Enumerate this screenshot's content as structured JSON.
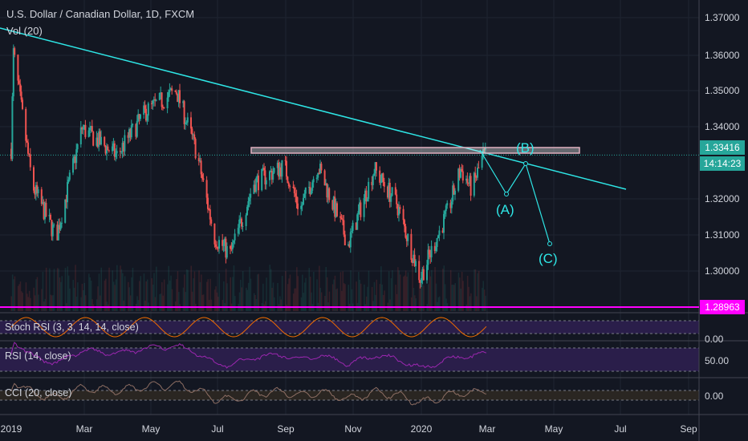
{
  "header": {
    "title": "U.S. Dollar / Canadian Dollar, 1D, FXCM",
    "volume_label": "Vol (20)"
  },
  "price_axis": {
    "ticks": [
      "1.37000",
      "1.36000",
      "1.35000",
      "1.34000",
      "1.32000",
      "1.31000",
      "1.30000"
    ],
    "ylim": [
      1.2895,
      1.3745
    ]
  },
  "last_price": {
    "value": "1.33416",
    "countdown": "14:14:23",
    "color": "#26a69a"
  },
  "horizontal_line": {
    "value": "1.28963",
    "color": "#ff00ff"
  },
  "annotations": {
    "trend_color": "#2ee6e6",
    "wave_labels": [
      "(A)",
      "(B)",
      "(C)"
    ]
  },
  "indicators": [
    {
      "label": "Stoch RSI (3, 3, 14, 14, close)",
      "axis": "0.00"
    },
    {
      "label": "RSI (14, close)",
      "axis": "50.00"
    },
    {
      "label": "CCI (20, close)",
      "axis": "0.00"
    }
  ],
  "time_axis": [
    "2019",
    "Mar",
    "May",
    "Jul",
    "Sep",
    "Nov",
    "2020",
    "Mar",
    "May",
    "Jul",
    "Sep"
  ],
  "price_path": [
    [
      "2019-01-01",
      1.336
    ],
    [
      "2019-01-03",
      1.364
    ],
    [
      "2019-01-20",
      1.325
    ],
    [
      "2019-02-10",
      1.31
    ],
    [
      "2019-03-05",
      1.342
    ],
    [
      "2019-04-05",
      1.334
    ],
    [
      "2019-05-01",
      1.347
    ],
    [
      "2019-05-28",
      1.353
    ],
    [
      "2019-06-15",
      1.335
    ],
    [
      "2019-07-01",
      1.31
    ],
    [
      "2019-07-15",
      1.305
    ],
    [
      "2019-08-05",
      1.326
    ],
    [
      "2019-09-01",
      1.331
    ],
    [
      "2019-09-15",
      1.318
    ],
    [
      "2019-10-01",
      1.331
    ],
    [
      "2019-10-28",
      1.308
    ],
    [
      "2019-11-20",
      1.33
    ],
    [
      "2019-12-10",
      1.32
    ],
    [
      "2019-12-31",
      1.298
    ],
    [
      "2020-01-10",
      1.306
    ],
    [
      "2020-01-25",
      1.318
    ],
    [
      "2020-02-05",
      1.33
    ],
    [
      "2020-02-15",
      1.324
    ],
    [
      "2020-02-25",
      1.334
    ]
  ],
  "colors": {
    "up": "#26a69a",
    "down": "#ef5350"
  }
}
